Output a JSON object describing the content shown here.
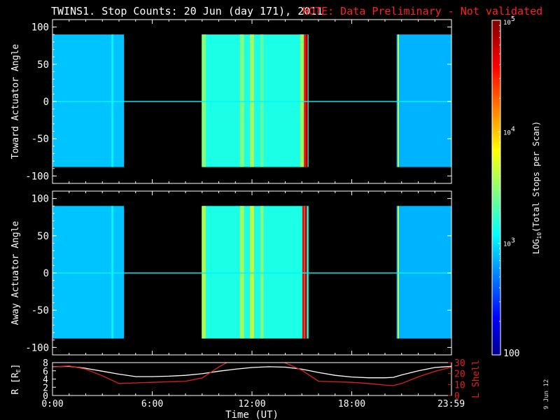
{
  "title": {
    "main": "TWINS1. Stop Counts: 20 Jun (day 171), 2011",
    "note": "NOTE: Data Preliminary - Not validated"
  },
  "date_stamp": "9 Jun 12",
  "colors": {
    "background": "#000000",
    "axes": "#ffffff",
    "note": "#ff2020",
    "lshell": "#e02020",
    "radius": "#ffffff"
  },
  "chart_data": [
    {
      "type": "heatmap",
      "ylabel": "Toward Actuator Angle",
      "ylim": [
        -110,
        110
      ],
      "yticks": [
        -100,
        -50,
        0,
        50,
        100
      ],
      "xlim": [
        0,
        24
      ],
      "data_y_range": [
        -88,
        90
      ],
      "segments": [
        {
          "start": 0.0,
          "end": 4.3,
          "level": 2.95
        },
        {
          "start": 9.0,
          "end": 15.4,
          "level": 3.2
        },
        {
          "start": 20.7,
          "end": 24.0,
          "level": 2.9
        }
      ],
      "features": [
        {
          "time": 3.6,
          "level": 3.1,
          "width": 0.12
        },
        {
          "time": 9.1,
          "level": 3.5,
          "width": 0.25
        },
        {
          "time": 11.4,
          "level": 3.5,
          "width": 0.25
        },
        {
          "time": 12.0,
          "level": 3.6,
          "width": 0.25
        },
        {
          "time": 12.6,
          "level": 3.4,
          "width": 0.2
        },
        {
          "time": 15.0,
          "level": 3.6,
          "width": 0.2
        },
        {
          "time": 15.2,
          "level": 4.6,
          "width": 0.15
        },
        {
          "time": 15.3,
          "level": 4.9,
          "width": 0.1
        },
        {
          "time": 20.8,
          "level": 3.7,
          "width": 0.08
        }
      ]
    },
    {
      "type": "heatmap",
      "ylabel": "Away Actuator Angle",
      "ylim": [
        -110,
        110
      ],
      "yticks": [
        -100,
        -50,
        0,
        50,
        100
      ],
      "xlim": [
        0,
        24
      ],
      "data_y_range": [
        -88,
        90
      ],
      "segments": [
        {
          "start": 0.0,
          "end": 4.3,
          "level": 2.95
        },
        {
          "start": 9.0,
          "end": 15.4,
          "level": 3.2
        },
        {
          "start": 20.7,
          "end": 24.0,
          "level": 2.9
        }
      ],
      "features": [
        {
          "time": 3.6,
          "level": 3.1,
          "width": 0.12
        },
        {
          "time": 9.1,
          "level": 3.6,
          "width": 0.25
        },
        {
          "time": 11.4,
          "level": 3.6,
          "width": 0.25
        },
        {
          "time": 12.0,
          "level": 3.7,
          "width": 0.25
        },
        {
          "time": 12.6,
          "level": 3.5,
          "width": 0.2
        },
        {
          "time": 15.1,
          "level": 4.6,
          "width": 0.15
        },
        {
          "time": 15.25,
          "level": 4.9,
          "width": 0.1
        },
        {
          "time": 20.8,
          "level": 3.7,
          "width": 0.08
        }
      ]
    },
    {
      "type": "line",
      "xlabel": "Time (UT)",
      "xlim": [
        0,
        24
      ],
      "xticks": [
        {
          "value": 0,
          "label": "0:00"
        },
        {
          "value": 6,
          "label": "6:00"
        },
        {
          "value": 12,
          "label": "12:00"
        },
        {
          "value": 18,
          "label": "18:00"
        },
        {
          "value": 23.98,
          "label": "23:59"
        }
      ],
      "left_axis": {
        "label": "R [R",
        "label_sub": "E",
        "label_close": "]",
        "ylim": [
          0,
          8
        ],
        "ticks": [
          0,
          2,
          4,
          6,
          8
        ]
      },
      "right_axis": {
        "label": "L Shell",
        "ylim": [
          0,
          30
        ],
        "ticks": [
          0,
          10,
          20,
          30
        ]
      },
      "series": [
        {
          "axis": "left",
          "x": [
            0,
            1,
            2,
            3,
            4,
            5,
            6,
            7,
            8,
            9,
            10,
            11,
            12,
            13,
            14,
            15,
            16,
            17,
            18,
            19,
            20,
            20.5,
            21,
            22,
            23,
            24
          ],
          "y": [
            7.0,
            7.1,
            6.6,
            5.9,
            5.2,
            4.6,
            4.6,
            4.7,
            4.9,
            5.3,
            5.9,
            6.4,
            6.8,
            7.0,
            6.9,
            6.4,
            5.6,
            4.9,
            4.5,
            4.3,
            4.3,
            4.4,
            5.0,
            6.0,
            6.8,
            7.1
          ]
        },
        {
          "axis": "right",
          "x": [
            0,
            1,
            2,
            3,
            4,
            5,
            6,
            7,
            8,
            9,
            10,
            10.6,
            13.8,
            15,
            16,
            17,
            18,
            19,
            20,
            20.5,
            21,
            22,
            23,
            24
          ],
          "y": [
            26,
            27,
            24,
            18,
            11,
            11.5,
            12,
            12.5,
            13,
            16,
            26,
            31,
            31,
            23,
            13,
            12.5,
            12,
            11,
            9.5,
            9,
            11,
            17,
            22,
            26
          ]
        }
      ]
    }
  ],
  "colorbar": {
    "label_prefix": "LOG",
    "label_sub": "10",
    "label_rest": "(Total Stops per Scan)",
    "range": [
      2,
      5
    ],
    "ticks": [
      {
        "value": 5,
        "label": "10",
        "sup": "5"
      },
      {
        "value": 4,
        "label": "10",
        "sup": "4"
      },
      {
        "value": 3,
        "label": "10",
        "sup": "3"
      },
      {
        "value": 2,
        "label": "100",
        "sup": ""
      }
    ]
  }
}
